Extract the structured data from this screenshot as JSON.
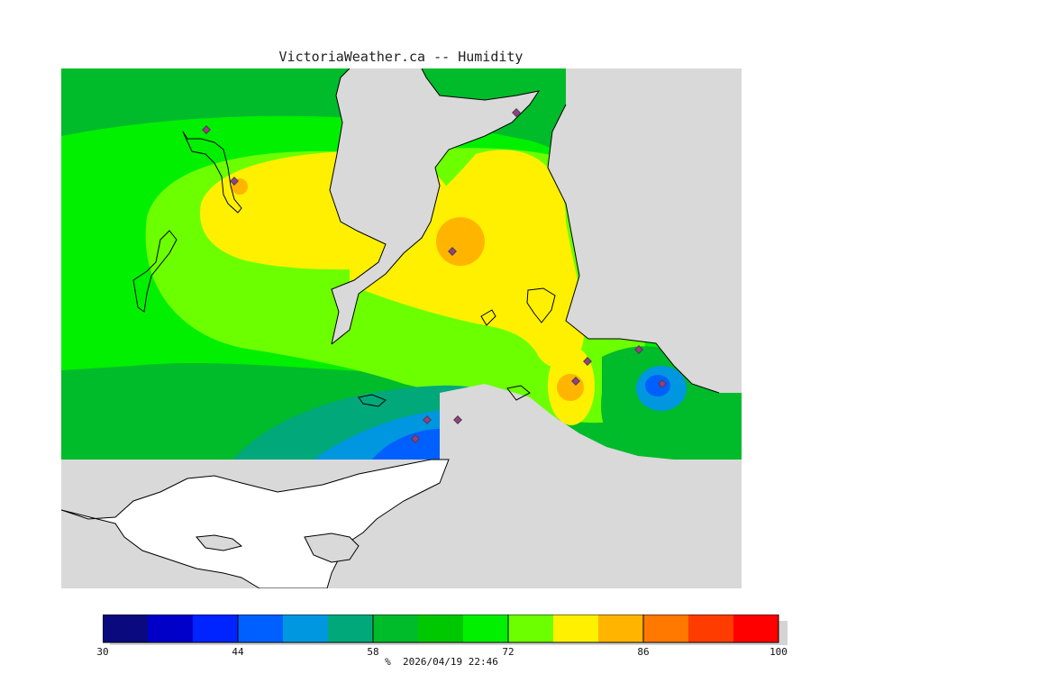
{
  "title": "VictoriaWeather.ca -- Humidity",
  "legend": {
    "unit": "%",
    "timestamp": "2026/04/19 22:46",
    "min": 30,
    "max": 100,
    "tick_labels": [
      "30",
      "44",
      "58",
      "72",
      "86",
      "100"
    ],
    "colors": [
      "#0a0a7e",
      "#0000c8",
      "#0024ff",
      "#0060ff",
      "#0096e0",
      "#00a87a",
      "#00bb2a",
      "#00c800",
      "#00f000",
      "#6cff00",
      "#fff000",
      "#ffb400",
      "#ff7800",
      "#ff3c00",
      "#ff0000"
    ]
  },
  "map": {
    "land_color": "#d9d9d9",
    "outside_color": "#ffffff",
    "station_color": "#9d3a8a"
  }
}
